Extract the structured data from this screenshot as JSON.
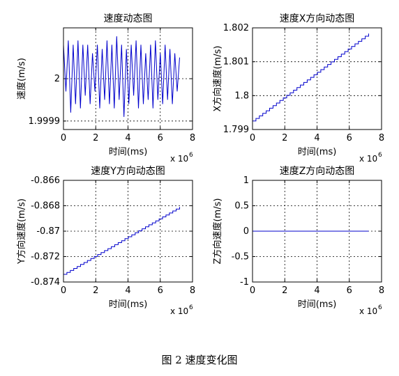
{
  "caption": "图 2  速度变化图",
  "chart_data": [
    {
      "type": "line",
      "title": "速度动态图",
      "xlabel": "时间(ms)",
      "ylabel": "速度(m/s)",
      "x_exponent_label": "x 10",
      "x_exponent": "6",
      "xlim": [
        0,
        8
      ],
      "ylim": [
        1.99988,
        2.00012
      ],
      "xticks": [
        "0",
        "2",
        "4",
        "6",
        "8"
      ],
      "yticks": [
        {
          "value": 2.0,
          "label": "2"
        },
        {
          "value": 1.9999,
          "label": "1.9999"
        }
      ],
      "grid": true,
      "color": "#0000cc",
      "series": [
        {
          "style": "noisy",
          "x": [
            0.0,
            0.15,
            0.3,
            0.45,
            0.6,
            0.75,
            0.9,
            1.05,
            1.2,
            1.35,
            1.5,
            1.65,
            1.8,
            1.95,
            2.1,
            2.25,
            2.4,
            2.55,
            2.7,
            2.85,
            3.0,
            3.15,
            3.3,
            3.45,
            3.6,
            3.75,
            3.9,
            4.05,
            4.2,
            4.35,
            4.5,
            4.65,
            4.8,
            4.95,
            5.1,
            5.25,
            5.4,
            5.55,
            5.7,
            5.85,
            6.0,
            6.15,
            6.3,
            6.45,
            6.6,
            6.75,
            6.9,
            7.05,
            7.2
          ],
          "y": [
            2.00008,
            1.99997,
            2.00009,
            1.99992,
            2.00008,
            1.99994,
            2.00009,
            1.99993,
            2.00008,
            1.99996,
            2.00008,
            1.99994,
            2.00006,
            1.99997,
            2.00008,
            1.99993,
            2.00007,
            1.99995,
            2.00009,
            1.99994,
            2.00008,
            1.99993,
            2.0001,
            1.99995,
            2.00008,
            1.99991,
            2.00007,
            1.99994,
            2.00008,
            1.99996,
            2.00009,
            1.99993,
            2.00008,
            1.99994,
            2.00006,
            1.99995,
            2.00008,
            1.99993,
            2.00009,
            1.99995,
            2.00006,
            1.99994,
            2.00008,
            1.99995,
            2.00007,
            1.99994,
            2.00006,
            1.99997,
            2.00005
          ]
        }
      ]
    },
    {
      "type": "line",
      "title": "速度X方向动态图",
      "xlabel": "时间(ms)",
      "ylabel": "X方向速度(m/s)",
      "x_exponent_label": "x 10",
      "x_exponent": "6",
      "xlim": [
        0,
        8
      ],
      "ylim": [
        1.799,
        1.802
      ],
      "xticks": [
        "0",
        "2",
        "4",
        "6",
        "8"
      ],
      "yticks": [
        {
          "value": 1.799,
          "label": "1.799"
        },
        {
          "value": 1.8,
          "label": "1.8"
        },
        {
          "value": 1.801,
          "label": "1.801"
        },
        {
          "value": 1.802,
          "label": "1.802"
        }
      ],
      "grid": true,
      "color": "#0000cc",
      "series": [
        {
          "style": "stair",
          "x": [
            0,
            7.2
          ],
          "y": [
            1.79925,
            1.80183
          ]
        }
      ]
    },
    {
      "type": "line",
      "title": "速度Y方向动态图",
      "xlabel": "时间(ms)",
      "ylabel": "Y方向速度(m/s)",
      "x_exponent_label": "x 10",
      "x_exponent": "6",
      "xlim": [
        0,
        8
      ],
      "ylim": [
        -0.874,
        -0.866
      ],
      "xticks": [
        "0",
        "2",
        "4",
        "6",
        "8"
      ],
      "yticks": [
        {
          "value": -0.866,
          "label": "-0.866"
        },
        {
          "value": -0.868,
          "label": "-0.868"
        },
        {
          "value": -0.87,
          "label": "-0.87"
        },
        {
          "value": -0.872,
          "label": "-0.872"
        },
        {
          "value": -0.874,
          "label": "-0.874"
        }
      ],
      "grid": true,
      "color": "#0000cc",
      "series": [
        {
          "style": "stair",
          "x": [
            0,
            7.2
          ],
          "y": [
            -0.8734,
            -0.8681
          ]
        }
      ]
    },
    {
      "type": "line",
      "title": "速度Z方向动态图",
      "xlabel": "时间(ms)",
      "ylabel": "Z方向速度(m/s)",
      "x_exponent_label": "x 10",
      "x_exponent": "6",
      "xlim": [
        0,
        8
      ],
      "ylim": [
        -1,
        1
      ],
      "xticks": [
        "0",
        "2",
        "4",
        "6",
        "8"
      ],
      "yticks": [
        {
          "value": 1,
          "label": "1"
        },
        {
          "value": 0.5,
          "label": "0.5"
        },
        {
          "value": 0,
          "label": "0"
        },
        {
          "value": -0.5,
          "label": "-0.5"
        },
        {
          "value": -1,
          "label": "-1"
        }
      ],
      "grid": true,
      "color": "#0000cc",
      "series": [
        {
          "style": "line",
          "x": [
            0,
            7.2
          ],
          "y": [
            0,
            0
          ]
        }
      ]
    }
  ]
}
